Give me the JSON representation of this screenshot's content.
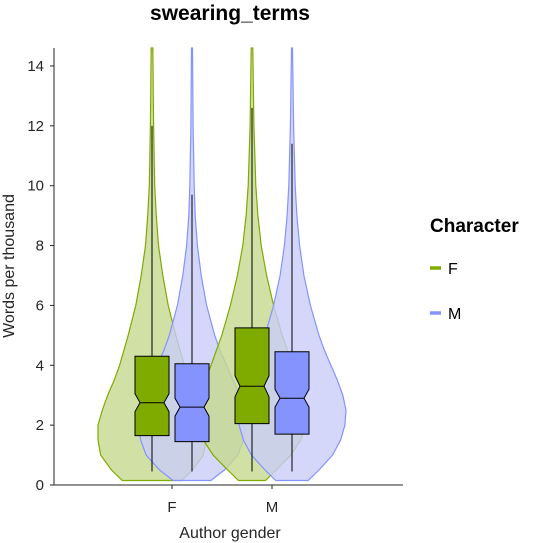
{
  "chart_data": {
    "type": "violin",
    "title": "swearing_terms",
    "xlabel": "Author gender",
    "ylabel": "Words per thousand",
    "ylim": [
      0,
      14.6
    ],
    "yticks": [
      0,
      2,
      4,
      6,
      8,
      10,
      12,
      14
    ],
    "categories": [
      "F",
      "M"
    ],
    "legend": {
      "title": "Character",
      "position": "right",
      "entries": [
        {
          "label": "F",
          "color": "#7faa00"
        },
        {
          "label": "M",
          "color": "#8593ff"
        }
      ]
    },
    "colors": {
      "F": {
        "fill": "#c6d98e",
        "stroke": "#7faa00",
        "box": "#7faa00"
      },
      "M": {
        "fill": "#c9cdf7",
        "stroke": "#8593ff",
        "box": "#8593ff"
      }
    },
    "series": [
      {
        "author": "F",
        "character": "F",
        "box": {
          "q1": 1.65,
          "median": 2.75,
          "q3": 4.3,
          "notch_low": 2.45,
          "notch_high": 3.05,
          "whisker_low": 0.45,
          "whisker_high": 12.0
        },
        "violin": [
          [
            0.15,
            0.55
          ],
          [
            0.5,
            0.75
          ],
          [
            1.0,
            0.95
          ],
          [
            1.5,
            1.0
          ],
          [
            2.0,
            1.0
          ],
          [
            2.5,
            0.92
          ],
          [
            3.0,
            0.82
          ],
          [
            3.5,
            0.7
          ],
          [
            4.0,
            0.6
          ],
          [
            4.5,
            0.52
          ],
          [
            5.0,
            0.44
          ],
          [
            6.0,
            0.3
          ],
          [
            7.0,
            0.2
          ],
          [
            8.0,
            0.12
          ],
          [
            9.0,
            0.08
          ],
          [
            10.0,
            0.05
          ],
          [
            12.0,
            0.03
          ],
          [
            14.6,
            0.015
          ]
        ]
      },
      {
        "author": "F",
        "character": "M",
        "box": {
          "q1": 1.45,
          "median": 2.6,
          "q3": 4.05,
          "notch_low": 2.3,
          "notch_high": 2.9,
          "whisker_low": 0.45,
          "whisker_high": 9.7
        },
        "violin": [
          [
            0.15,
            0.35
          ],
          [
            0.5,
            0.6
          ],
          [
            1.0,
            0.85
          ],
          [
            1.5,
            0.95
          ],
          [
            2.0,
            1.0
          ],
          [
            2.5,
            0.97
          ],
          [
            3.0,
            0.88
          ],
          [
            3.5,
            0.76
          ],
          [
            4.0,
            0.64
          ],
          [
            4.5,
            0.52
          ],
          [
            5.0,
            0.42
          ],
          [
            6.0,
            0.27
          ],
          [
            7.0,
            0.17
          ],
          [
            8.0,
            0.1
          ],
          [
            9.0,
            0.06
          ],
          [
            10.0,
            0.04
          ],
          [
            12.0,
            0.02
          ],
          [
            14.6,
            0.01
          ]
        ]
      },
      {
        "author": "M",
        "character": "F",
        "box": {
          "q1": 2.05,
          "median": 3.3,
          "q3": 5.25,
          "notch_low": 2.95,
          "notch_high": 3.65,
          "whisker_low": 0.45,
          "whisker_high": 12.6
        },
        "violin": [
          [
            0.15,
            0.25
          ],
          [
            0.5,
            0.45
          ],
          [
            1.0,
            0.72
          ],
          [
            1.5,
            0.9
          ],
          [
            2.0,
            1.0
          ],
          [
            2.5,
            1.0
          ],
          [
            3.0,
            0.95
          ],
          [
            3.5,
            0.86
          ],
          [
            4.0,
            0.76
          ],
          [
            4.5,
            0.66
          ],
          [
            5.0,
            0.56
          ],
          [
            6.0,
            0.4
          ],
          [
            7.0,
            0.27
          ],
          [
            8.0,
            0.17
          ],
          [
            9.0,
            0.11
          ],
          [
            10.0,
            0.07
          ],
          [
            12.0,
            0.035
          ],
          [
            14.6,
            0.015
          ]
        ]
      },
      {
        "author": "M",
        "character": "M",
        "box": {
          "q1": 1.7,
          "median": 2.9,
          "q3": 4.45,
          "notch_low": 2.6,
          "notch_high": 3.2,
          "whisker_low": 0.45,
          "whisker_high": 11.4
        },
        "violin": [
          [
            0.15,
            0.3
          ],
          [
            0.5,
            0.5
          ],
          [
            1.0,
            0.75
          ],
          [
            1.5,
            0.9
          ],
          [
            2.0,
            0.98
          ],
          [
            2.5,
            1.0
          ],
          [
            3.0,
            0.94
          ],
          [
            3.5,
            0.84
          ],
          [
            4.0,
            0.72
          ],
          [
            4.5,
            0.6
          ],
          [
            5.0,
            0.5
          ],
          [
            6.0,
            0.34
          ],
          [
            7.0,
            0.22
          ],
          [
            8.0,
            0.14
          ],
          [
            9.0,
            0.09
          ],
          [
            10.0,
            0.06
          ],
          [
            12.0,
            0.03
          ],
          [
            14.6,
            0.01
          ]
        ]
      }
    ]
  }
}
